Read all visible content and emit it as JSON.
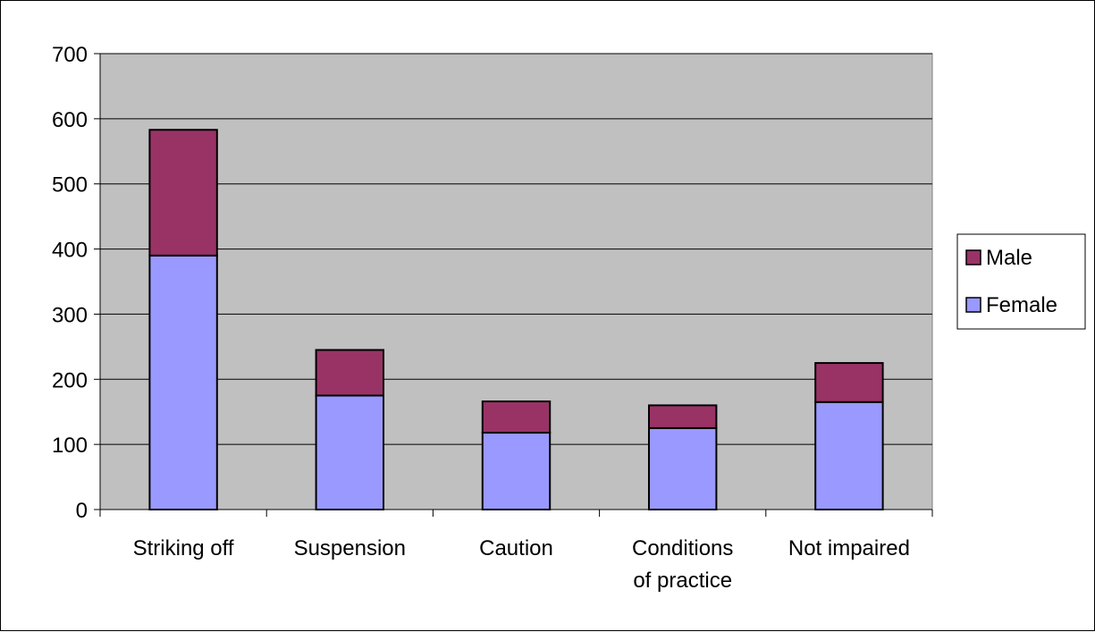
{
  "chart_data": {
    "type": "bar",
    "stacked": true,
    "title": "",
    "xlabel": "",
    "ylabel": "",
    "categories": [
      [
        "Striking off"
      ],
      [
        "Suspension"
      ],
      [
        "Caution"
      ],
      [
        "Conditions",
        "of practice"
      ],
      [
        "Not impaired"
      ]
    ],
    "series": [
      {
        "name": "Female",
        "color": "#9999ff",
        "values": [
          390,
          175,
          118,
          125,
          165
        ]
      },
      {
        "name": "Male",
        "color": "#993366",
        "values": [
          193,
          70,
          48,
          35,
          60
        ]
      }
    ],
    "ylim": [
      0,
      700
    ],
    "yticks": [
      0,
      100,
      200,
      300,
      400,
      500,
      600,
      700
    ],
    "grid": true,
    "plot_background": "#c0c0c0",
    "legend": {
      "placement": "right",
      "order": [
        "Male",
        "Female"
      ]
    }
  }
}
